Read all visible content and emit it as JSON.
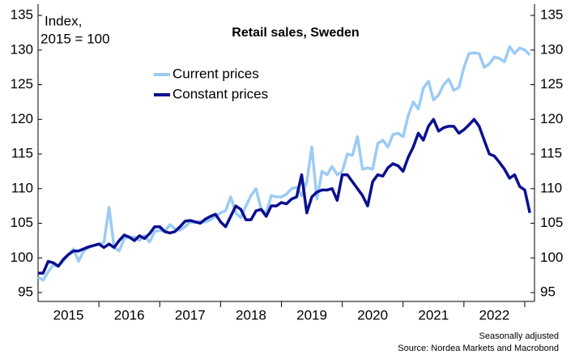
{
  "chart_data": {
    "type": "line",
    "title": "Retail sales, Sweden",
    "y_label": [
      "Index,",
      "2015 = 100"
    ],
    "notes": [
      "Seasonally adjusted",
      "Source: Nordea Markets and Macrobond"
    ],
    "x": [
      2015,
      2015.083,
      2015.167,
      2015.25,
      2015.333,
      2015.417,
      2015.5,
      2015.583,
      2015.667,
      2015.75,
      2015.833,
      2015.917,
      2016,
      2016.083,
      2016.167,
      2016.25,
      2016.333,
      2016.417,
      2016.5,
      2016.583,
      2016.667,
      2016.75,
      2016.833,
      2016.917,
      2017,
      2017.083,
      2017.167,
      2017.25,
      2017.333,
      2017.417,
      2017.5,
      2017.583,
      2017.667,
      2017.75,
      2017.833,
      2017.917,
      2018,
      2018.083,
      2018.167,
      2018.25,
      2018.333,
      2018.417,
      2018.5,
      2018.583,
      2018.667,
      2018.75,
      2018.833,
      2018.917,
      2019,
      2019.083,
      2019.167,
      2019.25,
      2019.333,
      2019.417,
      2019.5,
      2019.583,
      2019.667,
      2019.75,
      2019.833,
      2019.917,
      2020,
      2020.083,
      2020.167,
      2020.25,
      2020.333,
      2020.417,
      2020.5,
      2020.583,
      2020.667,
      2020.75,
      2020.833,
      2020.917,
      2021,
      2021.083,
      2021.167,
      2021.25,
      2021.333,
      2021.417,
      2021.5,
      2021.583,
      2021.667,
      2021.75,
      2021.833,
      2021.917,
      2022,
      2022.083,
      2022.167,
      2022.25,
      2022.333,
      2022.417,
      2022.5,
      2022.583,
      2022.667,
      2022.75,
      2022.833,
      2022.917,
      2023,
      2023.083
    ],
    "series": [
      {
        "name": "Current prices",
        "color": "#9ccbf5",
        "values": [
          97.2,
          96.8,
          98.0,
          99.0,
          98.8,
          99.6,
          100.5,
          101.3,
          99.5,
          101.0,
          101.5,
          101.8,
          102.0,
          102.2,
          107.3,
          101.5,
          101.0,
          102.8,
          103.0,
          103.0,
          102.5,
          103.2,
          102.3,
          103.8,
          104.0,
          103.8,
          104.8,
          104.2,
          104.0,
          104.5,
          105.2,
          105.1,
          105.3,
          105.2,
          105.5,
          106.0,
          106.5,
          106.8,
          108.8,
          106.5,
          105.8,
          107.5,
          109.0,
          110.0,
          107.0,
          106.5,
          109.0,
          108.8,
          108.8,
          109.2,
          110.0,
          110.2,
          109.0,
          111.0,
          116.0,
          108.5,
          112.5,
          112.0,
          113.2,
          112.0,
          112.5,
          115.0,
          114.8,
          117.5,
          112.8,
          113.0,
          112.8,
          116.5,
          117.0,
          116.0,
          117.8,
          118.0,
          117.5,
          120.5,
          122.5,
          121.5,
          124.5,
          125.5,
          122.8,
          123.5,
          125.0,
          125.8,
          124.2,
          124.6,
          127.5,
          129.5,
          129.6,
          129.5,
          127.5,
          128.0,
          129.0,
          128.8,
          128.3,
          130.5,
          129.5,
          130.3,
          130.0,
          129.3
        ]
      },
      {
        "name": "Constant prices",
        "color": "#0b0f8f",
        "values": [
          97.8,
          97.8,
          99.5,
          99.3,
          98.8,
          99.8,
          100.5,
          101.0,
          101.0,
          101.3,
          101.6,
          101.8,
          102.0,
          101.5,
          102.0,
          101.5,
          102.5,
          103.3,
          103.0,
          102.5,
          103.2,
          102.8,
          103.5,
          104.5,
          104.5,
          103.8,
          103.6,
          103.8,
          104.5,
          105.3,
          105.4,
          105.2,
          105.0,
          105.6,
          106.0,
          106.3,
          105.2,
          104.5,
          106.0,
          107.5,
          107.0,
          105.5,
          105.5,
          106.8,
          107.0,
          106.0,
          107.5,
          107.5,
          108.0,
          107.8,
          108.5,
          108.8,
          112.0,
          106.5,
          108.8,
          109.5,
          109.8,
          109.8,
          110.0,
          108.3,
          112.0,
          112.0,
          111.0,
          110.0,
          109.0,
          107.5,
          111.0,
          112.0,
          111.8,
          113.0,
          113.6,
          113.3,
          112.5,
          114.5,
          116.0,
          118.0,
          117.0,
          119.0,
          120.0,
          118.3,
          118.8,
          119.0,
          119.0,
          118.0,
          118.5,
          119.2,
          120.0,
          119.0,
          117.0,
          115.0,
          114.7,
          113.8,
          112.8,
          111.5,
          112.0,
          110.3,
          109.8,
          106.5
        ]
      }
    ],
    "xlim": [
      2015,
      2023.16
    ],
    "xticks": [
      {
        "value": 2015.5,
        "label": "2015"
      },
      {
        "value": 2016.5,
        "label": "2016"
      },
      {
        "value": 2017.5,
        "label": "2017"
      },
      {
        "value": 2018.5,
        "label": "2018"
      },
      {
        "value": 2019.5,
        "label": "2019"
      },
      {
        "value": 2020.5,
        "label": "2020"
      },
      {
        "value": 2021.5,
        "label": "2021"
      },
      {
        "value": 2022.5,
        "label": "2022"
      }
    ],
    "ylim": [
      94,
      136.3
    ],
    "yticks": [
      95,
      100,
      105,
      110,
      115,
      120,
      125,
      130,
      135
    ],
    "grid": false
  }
}
